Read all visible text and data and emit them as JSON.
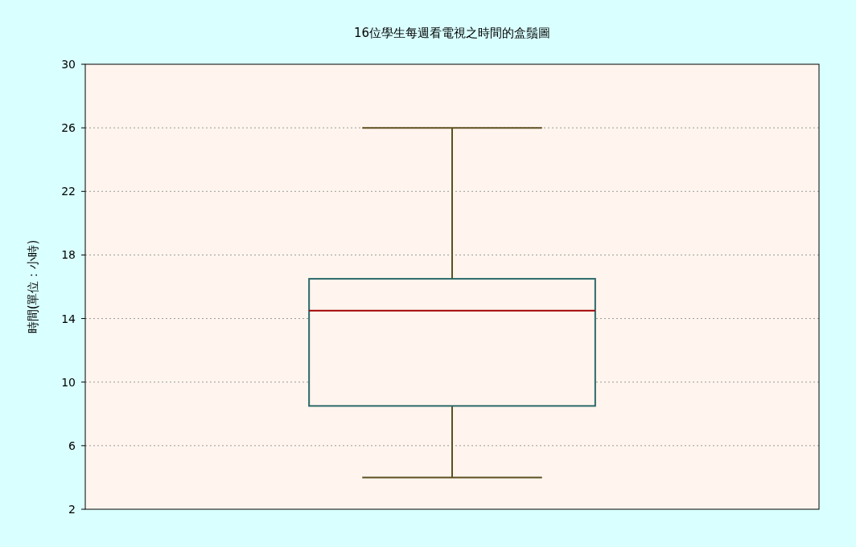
{
  "chart_data": {
    "type": "box",
    "title": "16位學生每週看電視之時間的盒鬚圖",
    "ylabel": "時間(單位：小時)",
    "categories": [
      null
    ],
    "boxes": [
      {
        "low": 4,
        "q1": 8.5,
        "median": 14.5,
        "q3": 16.5,
        "high": 26
      }
    ],
    "ylim": [
      2,
      30
    ],
    "yticks": [
      2,
      6,
      10,
      14,
      18,
      22,
      26,
      30
    ],
    "grid": "y",
    "tick_labels": "y",
    "color": "#2a6868"
  }
}
